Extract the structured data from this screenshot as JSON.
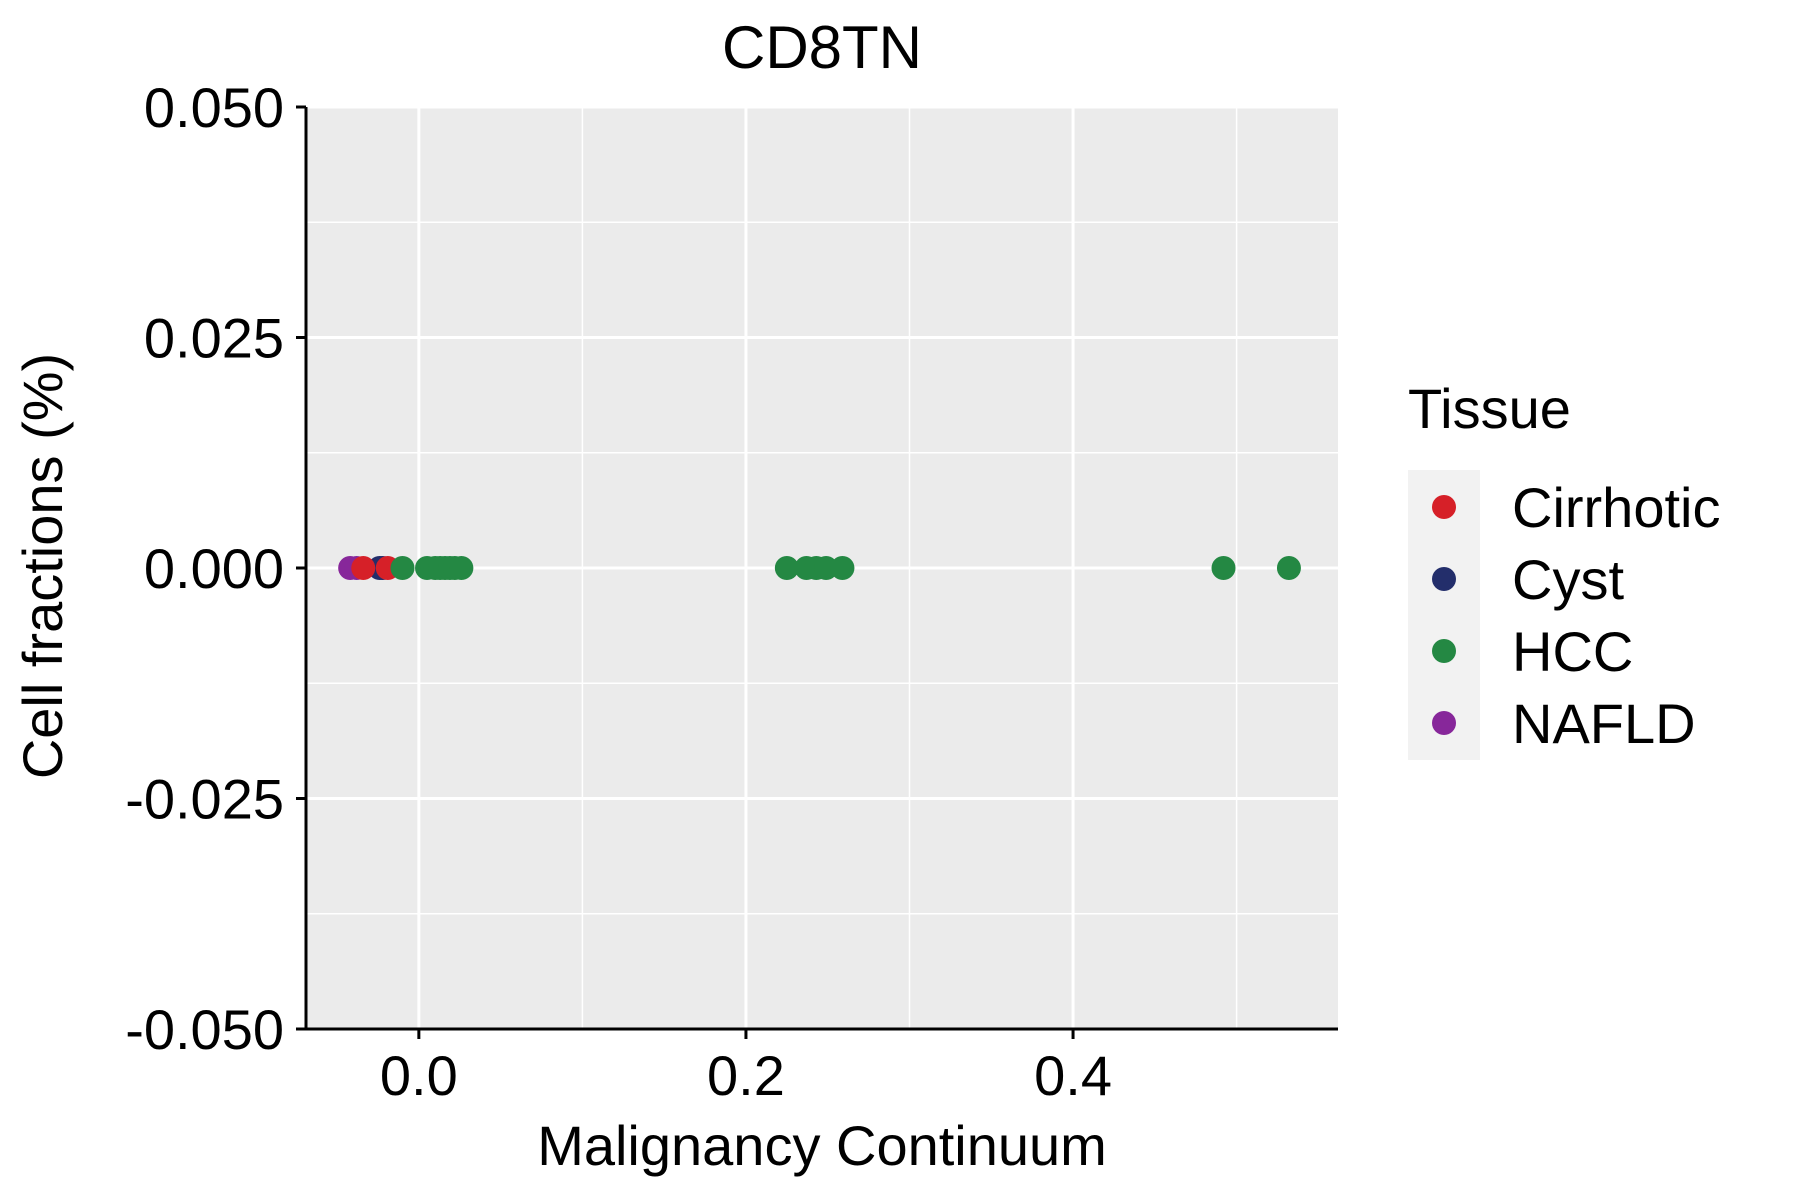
{
  "chart_data": {
    "type": "scatter",
    "title": "CD8TN",
    "xlabel": "Malignancy Continuum",
    "ylabel": "Cell fractions (%)",
    "xlim": [
      -0.069,
      0.562
    ],
    "ylim": [
      -0.05,
      0.05
    ],
    "x_ticks": [
      0.0,
      0.2,
      0.4
    ],
    "x_tick_labels": [
      "0.0",
      "0.2",
      "0.4"
    ],
    "y_ticks": [
      0.05,
      0.025,
      0.0,
      -0.025,
      -0.05
    ],
    "y_tick_labels": [
      "0.050",
      "0.025",
      "0.000",
      "-0.025",
      "-0.050"
    ],
    "grid": true,
    "legend": {
      "title": "Tissue",
      "position": "right",
      "entries": [
        "Cirrhotic",
        "Cyst",
        "HCC",
        "NAFLD"
      ]
    },
    "colors": {
      "Cirrhotic": "#d62028",
      "Cyst": "#232e6b",
      "HCC": "#248843",
      "NAFLD": "#87279a",
      "panel": "#ebebeb",
      "grid": "#ffffff"
    },
    "series": [
      {
        "name": "NAFLD",
        "points": [
          [
            -0.042,
            0
          ],
          [
            -0.038,
            0
          ]
        ]
      },
      {
        "name": "Cyst",
        "points": [
          [
            -0.024,
            0
          ],
          [
            -0.022,
            0
          ]
        ]
      },
      {
        "name": "Cirrhotic",
        "points": [
          [
            -0.034,
            0
          ],
          [
            -0.019,
            0
          ]
        ]
      },
      {
        "name": "HCC",
        "points": [
          [
            -0.01,
            0
          ],
          [
            0.005,
            0
          ],
          [
            0.01,
            0
          ],
          [
            0.013,
            0
          ],
          [
            0.016,
            0
          ],
          [
            0.019,
            0
          ],
          [
            0.022,
            0
          ],
          [
            0.026,
            0
          ],
          [
            0.225,
            0
          ],
          [
            0.237,
            0
          ],
          [
            0.243,
            0
          ],
          [
            0.249,
            0
          ],
          [
            0.259,
            0
          ],
          [
            0.492,
            0
          ],
          [
            0.532,
            0
          ]
        ]
      }
    ]
  }
}
